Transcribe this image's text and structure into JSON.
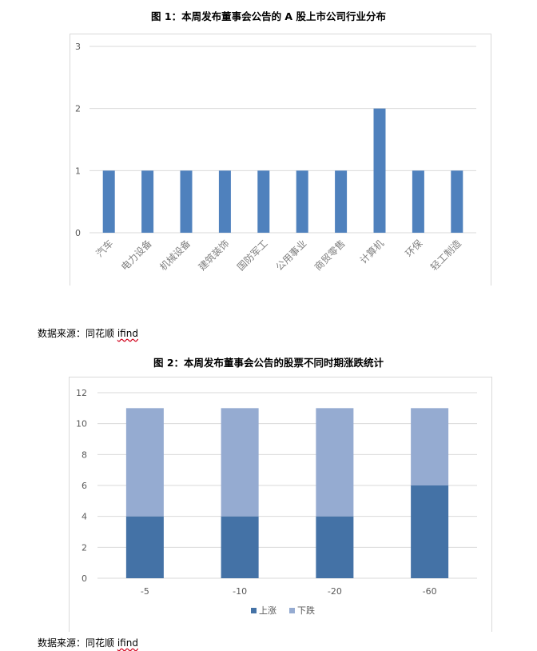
{
  "chart1": {
    "title": "图 1：本周发布董事会公告的 A 股上市公司行业分布",
    "source_label": "数据来源：同花顺 ",
    "source_brand": "ifind",
    "bar_color": "#4f81bd",
    "chart_data": {
      "type": "bar",
      "categories": [
        "汽车",
        "电力设备",
        "机械设备",
        "建筑装饰",
        "国防军工",
        "公用事业",
        "商贸零售",
        "计算机",
        "环保",
        "轻工制造"
      ],
      "values": [
        1,
        1,
        1,
        1,
        1,
        1,
        1,
        2,
        1,
        1
      ],
      "title": "",
      "xlabel": "",
      "ylabel": "",
      "ylim": [
        0,
        3
      ],
      "yticks": [
        0,
        1,
        2,
        3
      ],
      "grid": true,
      "legend": "none"
    }
  },
  "chart2": {
    "title": "图 2：本周发布董事会公告的股票不同时期涨跌统计",
    "source_label": "数据来源：同花顺 ",
    "source_brand": "ifind",
    "chart_data": {
      "type": "bar",
      "stacked": true,
      "categories": [
        "-5",
        "-10",
        "-20",
        "-60"
      ],
      "series": [
        {
          "name": "上涨",
          "values": [
            4,
            4,
            4,
            6
          ],
          "color": "#4472a6"
        },
        {
          "name": "下跌",
          "values": [
            7,
            7,
            7,
            5
          ],
          "color": "#95abd1"
        }
      ],
      "title": "",
      "xlabel": "",
      "ylabel": "",
      "ylim": [
        0,
        12
      ],
      "yticks": [
        0,
        2,
        4,
        6,
        8,
        10,
        12
      ],
      "grid": true,
      "legend": "bottom"
    }
  }
}
